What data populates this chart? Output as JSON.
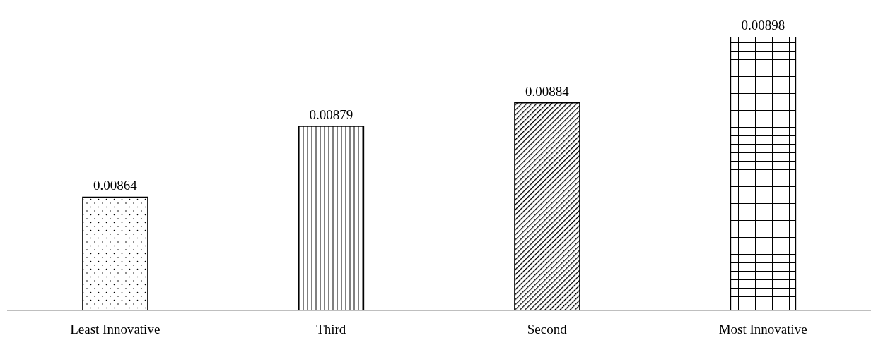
{
  "chart_data": {
    "type": "bar",
    "categories": [
      "Least Innovative",
      "Third",
      "Second",
      "Most Innovative"
    ],
    "values": [
      0.00864,
      0.00879,
      0.00884,
      0.00898
    ],
    "colors": [
      "#000000",
      "#000000",
      "#000000",
      "#000000"
    ],
    "ylim": [
      0.0084,
      0.00898
    ],
    "data_labels": true,
    "grid": false,
    "legend": false
  }
}
